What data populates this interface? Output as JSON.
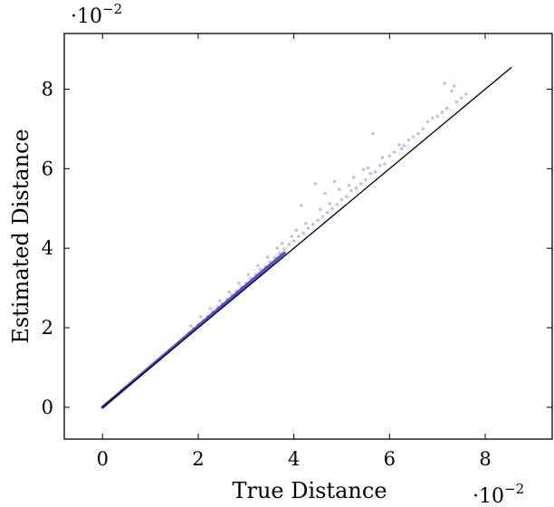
{
  "chart_data": {
    "type": "scatter",
    "xlabel": "True Distance",
    "ylabel": "Estimated Distance",
    "xlim": [
      -0.008,
      0.094
    ],
    "ylim": [
      -0.008,
      0.094
    ],
    "x_ticks": [
      0,
      0.02,
      0.04,
      0.06,
      0.08
    ],
    "y_ticks": [
      0,
      0.02,
      0.04,
      0.06,
      0.08
    ],
    "x_tick_labels": [
      "0",
      "2",
      "4",
      "6",
      "8"
    ],
    "y_tick_labels": [
      "0",
      "2",
      "4",
      "6",
      "8"
    ],
    "x_scale_label": {
      "base": "·10",
      "exponent": "−2"
    },
    "y_scale_label": {
      "base": "·10",
      "exponent": "−2"
    },
    "grid": false,
    "reference_line": {
      "from": [
        0,
        0
      ],
      "to": [
        0.0855,
        0.0855
      ],
      "color": "#000000"
    },
    "point_color": "#3333cc",
    "series": [
      {
        "points": [
          [
            0.002,
            0.002
          ],
          [
            0.004,
            0.0041
          ],
          [
            0.006,
            0.006
          ],
          [
            0.008,
            0.0081
          ],
          [
            0.01,
            0.0101
          ],
          [
            0.012,
            0.012
          ],
          [
            0.014,
            0.0142
          ],
          [
            0.016,
            0.0162
          ],
          [
            0.017,
            0.0174
          ],
          [
            0.018,
            0.0186
          ],
          [
            0.019,
            0.0198
          ],
          [
            0.0185,
            0.0205
          ],
          [
            0.02,
            0.0208
          ],
          [
            0.021,
            0.0218
          ],
          [
            0.0205,
            0.0228
          ],
          [
            0.022,
            0.0228
          ],
          [
            0.023,
            0.024
          ],
          [
            0.0225,
            0.0248
          ],
          [
            0.024,
            0.0252
          ],
          [
            0.025,
            0.026
          ],
          [
            0.0245,
            0.0268
          ],
          [
            0.026,
            0.0272
          ],
          [
            0.027,
            0.0282
          ],
          [
            0.0265,
            0.029
          ],
          [
            0.028,
            0.0292
          ],
          [
            0.029,
            0.0302
          ],
          [
            0.0285,
            0.0312
          ],
          [
            0.03,
            0.0312
          ],
          [
            0.031,
            0.0324
          ],
          [
            0.0305,
            0.0334
          ],
          [
            0.032,
            0.0334
          ],
          [
            0.033,
            0.0346
          ],
          [
            0.0325,
            0.0356
          ],
          [
            0.034,
            0.0354
          ],
          [
            0.035,
            0.0366
          ],
          [
            0.0345,
            0.0378
          ],
          [
            0.036,
            0.0376
          ],
          [
            0.037,
            0.0388
          ],
          [
            0.0365,
            0.04
          ],
          [
            0.038,
            0.0398
          ],
          [
            0.0375,
            0.0412
          ],
          [
            0.039,
            0.041
          ],
          [
            0.04,
            0.0418
          ],
          [
            0.0395,
            0.043
          ],
          [
            0.041,
            0.043
          ],
          [
            0.0405,
            0.0445
          ],
          [
            0.042,
            0.0438
          ],
          [
            0.0415,
            0.0508
          ],
          [
            0.043,
            0.045
          ],
          [
            0.0425,
            0.0462
          ],
          [
            0.044,
            0.046
          ],
          [
            0.0445,
            0.0562
          ],
          [
            0.045,
            0.047
          ],
          [
            0.0455,
            0.0498
          ],
          [
            0.046,
            0.048
          ],
          [
            0.0465,
            0.0538
          ],
          [
            0.047,
            0.049
          ],
          [
            0.0475,
            0.0512
          ],
          [
            0.048,
            0.05
          ],
          [
            0.0485,
            0.0568
          ],
          [
            0.049,
            0.051
          ],
          [
            0.05,
            0.0522
          ],
          [
            0.0495,
            0.0548
          ],
          [
            0.051,
            0.053
          ],
          [
            0.0515,
            0.0558
          ],
          [
            0.052,
            0.0545
          ],
          [
            0.053,
            0.0552
          ],
          [
            0.0525,
            0.0578
          ],
          [
            0.054,
            0.0562
          ],
          [
            0.0545,
            0.0598
          ],
          [
            0.055,
            0.0572
          ],
          [
            0.0555,
            0.0602
          ],
          [
            0.056,
            0.0588
          ],
          [
            0.057,
            0.0592
          ],
          [
            0.0565,
            0.0688
          ],
          [
            0.058,
            0.0608
          ],
          [
            0.0585,
            0.0628
          ],
          [
            0.059,
            0.0612
          ],
          [
            0.06,
            0.0632
          ],
          [
            0.061,
            0.0642
          ],
          [
            0.062,
            0.066
          ],
          [
            0.0625,
            0.065
          ],
          [
            0.063,
            0.0658
          ],
          [
            0.064,
            0.0672
          ],
          [
            0.065,
            0.068
          ],
          [
            0.066,
            0.0688
          ],
          [
            0.067,
            0.07
          ],
          [
            0.068,
            0.0718
          ],
          [
            0.069,
            0.0728
          ],
          [
            0.07,
            0.0732
          ],
          [
            0.071,
            0.0742
          ],
          [
            0.0715,
            0.0815
          ],
          [
            0.072,
            0.0752
          ],
          [
            0.073,
            0.0795
          ],
          [
            0.0735,
            0.0808
          ],
          [
            0.074,
            0.0768
          ],
          [
            0.075,
            0.0778
          ],
          [
            0.076,
            0.0788
          ]
        ]
      }
    ]
  }
}
